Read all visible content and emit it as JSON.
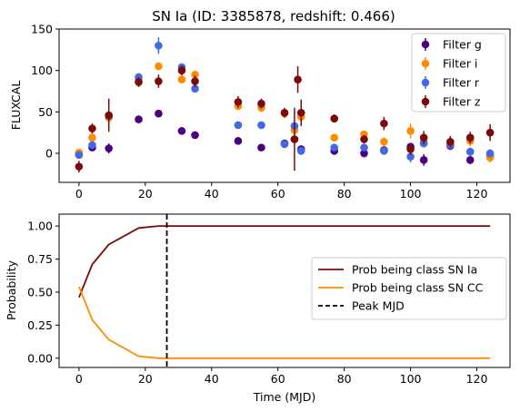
{
  "title": "SN Ia (ID: 3385878, redshift: 0.466)",
  "chart_data": [
    {
      "type": "scatter",
      "title": "SN Ia (ID: 3385878, redshift: 0.466)",
      "xlabel": "",
      "ylabel": "FLUXCAL",
      "xlim": [
        -6,
        130
      ],
      "ylim": [
        -35,
        150
      ],
      "xticks": [
        0,
        20,
        40,
        60,
        80,
        100,
        120
      ],
      "yticks": [
        0,
        50,
        100,
        150
      ],
      "legend_position": "top-right",
      "series": [
        {
          "name": "Filter g",
          "color": "#4B0082",
          "points": [
            {
              "x": 0,
              "y": -1,
              "err": 3
            },
            {
              "x": 4,
              "y": 7,
              "err": 4
            },
            {
              "x": 9,
              "y": 6,
              "err": 6
            },
            {
              "x": 18,
              "y": 41,
              "err": 3
            },
            {
              "x": 24,
              "y": 48,
              "err": 3
            },
            {
              "x": 31,
              "y": 27,
              "err": 3
            },
            {
              "x": 35,
              "y": 22,
              "err": 3
            },
            {
              "x": 48,
              "y": 15,
              "err": 3
            },
            {
              "x": 55,
              "y": 7,
              "err": 3
            },
            {
              "x": 62,
              "y": 12,
              "err": 3
            },
            {
              "x": 65,
              "y": 17,
              "err": 4
            },
            {
              "x": 67,
              "y": 5,
              "err": 4
            },
            {
              "x": 77,
              "y": 3,
              "err": 3
            },
            {
              "x": 86,
              "y": 0,
              "err": 3
            },
            {
              "x": 92,
              "y": 4,
              "err": 3
            },
            {
              "x": 100,
              "y": 8,
              "err": 4
            },
            {
              "x": 104,
              "y": -8,
              "err": 7
            },
            {
              "x": 112,
              "y": 9,
              "err": 5
            },
            {
              "x": 118,
              "y": -8,
              "err": 5
            },
            {
              "x": 124,
              "y": -3,
              "err": 5
            }
          ]
        },
        {
          "name": "Filter i",
          "color": "#FF8C00",
          "points": [
            {
              "x": 0,
              "y": 1,
              "err": 4
            },
            {
              "x": 4,
              "y": 19,
              "err": 5
            },
            {
              "x": 9,
              "y": 43,
              "err": 7
            },
            {
              "x": 18,
              "y": 90,
              "err": 4
            },
            {
              "x": 24,
              "y": 105,
              "err": 4
            },
            {
              "x": 31,
              "y": 89,
              "err": 4
            },
            {
              "x": 35,
              "y": 95,
              "err": 5
            },
            {
              "x": 48,
              "y": 57,
              "err": 4
            },
            {
              "x": 55,
              "y": 55,
              "err": 4
            },
            {
              "x": 62,
              "y": 48,
              "err": 4
            },
            {
              "x": 65,
              "y": 28,
              "err": 6
            },
            {
              "x": 67,
              "y": 44,
              "err": 6
            },
            {
              "x": 77,
              "y": 19,
              "err": 4
            },
            {
              "x": 86,
              "y": 23,
              "err": 4
            },
            {
              "x": 92,
              "y": 14,
              "err": 5
            },
            {
              "x": 100,
              "y": 27,
              "err": 9
            },
            {
              "x": 104,
              "y": 14,
              "err": 5
            },
            {
              "x": 112,
              "y": 13,
              "err": 5
            },
            {
              "x": 118,
              "y": 15,
              "err": 6
            },
            {
              "x": 124,
              "y": -5,
              "err": 6
            }
          ]
        },
        {
          "name": "Filter r",
          "color": "#4169E1",
          "points": [
            {
              "x": 0,
              "y": -2,
              "err": 3
            },
            {
              "x": 4,
              "y": 10,
              "err": 4
            },
            {
              "x": 9,
              "y": 45,
              "err": 5
            },
            {
              "x": 18,
              "y": 92,
              "err": 4
            },
            {
              "x": 24,
              "y": 130,
              "err": 10
            },
            {
              "x": 31,
              "y": 104,
              "err": 4
            },
            {
              "x": 35,
              "y": 78,
              "err": 4
            },
            {
              "x": 48,
              "y": 34,
              "err": 3
            },
            {
              "x": 55,
              "y": 34,
              "err": 3
            },
            {
              "x": 62,
              "y": 11,
              "err": 3
            },
            {
              "x": 65,
              "y": 33,
              "err": 5
            },
            {
              "x": 67,
              "y": 3,
              "err": 4
            },
            {
              "x": 77,
              "y": 7,
              "err": 3
            },
            {
              "x": 86,
              "y": 7,
              "err": 3
            },
            {
              "x": 92,
              "y": 3,
              "err": 3
            },
            {
              "x": 100,
              "y": -4,
              "err": 7
            },
            {
              "x": 104,
              "y": 12,
              "err": 5
            },
            {
              "x": 112,
              "y": 10,
              "err": 5
            },
            {
              "x": 118,
              "y": 2,
              "err": 5
            },
            {
              "x": 124,
              "y": 0,
              "err": 5
            }
          ]
        },
        {
          "name": "Filter z",
          "color": "#7B0A0A",
          "points": [
            {
              "x": 0,
              "y": -16,
              "err": 7
            },
            {
              "x": 4,
              "y": 30,
              "err": 6
            },
            {
              "x": 9,
              "y": 46,
              "err": 20
            },
            {
              "x": 18,
              "y": 86,
              "err": 6
            },
            {
              "x": 24,
              "y": 87,
              "err": 8
            },
            {
              "x": 31,
              "y": 100,
              "err": 6
            },
            {
              "x": 35,
              "y": 87,
              "err": 7
            },
            {
              "x": 48,
              "y": 62,
              "err": 7
            },
            {
              "x": 55,
              "y": 60,
              "err": 6
            },
            {
              "x": 62,
              "y": 49,
              "err": 6
            },
            {
              "x": 65,
              "y": 17,
              "err": 38
            },
            {
              "x": 66,
              "y": 89,
              "err": 16
            },
            {
              "x": 67,
              "y": 49,
              "err": 16
            },
            {
              "x": 77,
              "y": 42,
              "err": 5
            },
            {
              "x": 86,
              "y": 17,
              "err": 5
            },
            {
              "x": 92,
              "y": 36,
              "err": 8
            },
            {
              "x": 100,
              "y": 5,
              "err": 7
            },
            {
              "x": 104,
              "y": 19,
              "err": 8
            },
            {
              "x": 112,
              "y": 14,
              "err": 7
            },
            {
              "x": 118,
              "y": 19,
              "err": 7
            },
            {
              "x": 124,
              "y": 25,
              "err": 10
            }
          ]
        }
      ]
    },
    {
      "type": "line",
      "xlabel": "Time (MJD)",
      "ylabel": "Probability",
      "xlim": [
        -6,
        130
      ],
      "ylim": [
        -0.07,
        1.09
      ],
      "xticks": [
        0,
        20,
        40,
        60,
        80,
        100,
        120
      ],
      "yticks": [
        0.0,
        0.25,
        0.5,
        0.75,
        1.0
      ],
      "yticklabels": [
        "0.00",
        "0.25",
        "0.50",
        "0.75",
        "1.00"
      ],
      "legend_position": "center-right",
      "series": [
        {
          "name": "Prob being class SN Ia",
          "color": "#7B0A0A",
          "x": [
            0,
            4,
            9,
            18,
            24,
            31,
            35,
            48,
            55,
            62,
            67,
            77,
            86,
            92,
            100,
            104,
            112,
            118,
            124
          ],
          "y": [
            0.46,
            0.71,
            0.86,
            0.985,
            1.0,
            1.0,
            1.0,
            1.0,
            1.0,
            1.0,
            1.0,
            1.0,
            1.0,
            1.0,
            1.0,
            1.0,
            1.0,
            1.0,
            1.0
          ]
        },
        {
          "name": "Prob being class SN CC",
          "color": "#FF8C00",
          "x": [
            0,
            4,
            9,
            18,
            24,
            31,
            35,
            48,
            55,
            62,
            67,
            77,
            86,
            92,
            100,
            104,
            112,
            118,
            124
          ],
          "y": [
            0.54,
            0.29,
            0.14,
            0.015,
            0.0,
            0.0,
            0.0,
            0.0,
            0.0,
            0.0,
            0.0,
            0.0,
            0.0,
            0.0,
            0.0,
            0.0,
            0.0,
            0.0,
            0.0
          ]
        }
      ],
      "vline": {
        "name": "Peak MJD",
        "x": 26.5,
        "color": "#000000",
        "style": "dashed"
      }
    }
  ]
}
